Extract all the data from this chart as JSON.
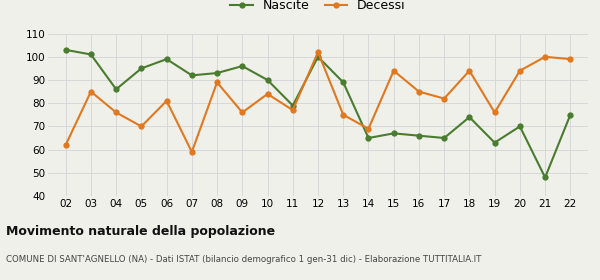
{
  "years": [
    2,
    3,
    4,
    5,
    6,
    7,
    8,
    9,
    10,
    11,
    12,
    13,
    14,
    15,
    16,
    17,
    18,
    19,
    20,
    21,
    22
  ],
  "nascite": [
    103,
    101,
    86,
    95,
    99,
    92,
    93,
    96,
    90,
    79,
    100,
    89,
    65,
    67,
    66,
    65,
    74,
    63,
    70,
    48,
    75
  ],
  "decessi": [
    62,
    85,
    76,
    70,
    81,
    59,
    89,
    76,
    84,
    77,
    102,
    75,
    69,
    94,
    85,
    82,
    94,
    76,
    94,
    100,
    99
  ],
  "nascite_color": "#4a7c2f",
  "decessi_color": "#e07820",
  "title": "Movimento naturale della popolazione",
  "subtitle": "COMUNE DI SANT'AGNELLO (NA) - Dati ISTAT (bilancio demografico 1 gen-31 dic) - Elaborazione TUTTITALIA.IT",
  "legend_nascite": "Nascite",
  "legend_decessi": "Decessi",
  "ylim": [
    40,
    110
  ],
  "yticks": [
    40,
    50,
    60,
    70,
    80,
    90,
    100,
    110
  ],
  "bg_color": "#f0f0eb",
  "grid_color": "#d8d8d8"
}
